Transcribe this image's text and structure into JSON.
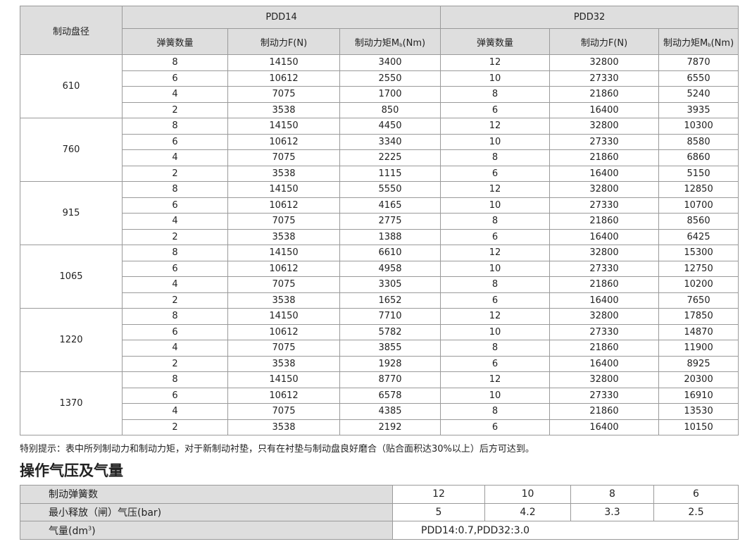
{
  "main_table": {
    "col_diameter": "制动盘径",
    "groups": [
      "PDD14",
      "PDD32"
    ],
    "sub_headers": [
      "弹簧数量",
      "制动力F(N)",
      "制动力矩M",
      "(Nm)"
    ],
    "torque_subscript": "b",
    "sections": [
      {
        "diameter": "610",
        "rows": [
          [
            "8",
            "14150",
            "3400",
            "12",
            "32800",
            "7870"
          ],
          [
            "6",
            "10612",
            "2550",
            "10",
            "27330",
            "6550"
          ],
          [
            "4",
            "7075",
            "1700",
            "8",
            "21860",
            "5240"
          ],
          [
            "2",
            "3538",
            "850",
            "6",
            "16400",
            "3935"
          ]
        ]
      },
      {
        "diameter": "760",
        "rows": [
          [
            "8",
            "14150",
            "4450",
            "12",
            "32800",
            "10300"
          ],
          [
            "6",
            "10612",
            "3340",
            "10",
            "27330",
            "8580"
          ],
          [
            "4",
            "7075",
            "2225",
            "8",
            "21860",
            "6860"
          ],
          [
            "2",
            "3538",
            "1115",
            "6",
            "16400",
            "5150"
          ]
        ]
      },
      {
        "diameter": "915",
        "rows": [
          [
            "8",
            "14150",
            "5550",
            "12",
            "32800",
            "12850"
          ],
          [
            "6",
            "10612",
            "4165",
            "10",
            "27330",
            "10700"
          ],
          [
            "4",
            "7075",
            "2775",
            "8",
            "21860",
            "8560"
          ],
          [
            "2",
            "3538",
            "1388",
            "6",
            "16400",
            "6425"
          ]
        ]
      },
      {
        "diameter": "1065",
        "rows": [
          [
            "8",
            "14150",
            "6610",
            "12",
            "32800",
            "15300"
          ],
          [
            "6",
            "10612",
            "4958",
            "10",
            "27330",
            "12750"
          ],
          [
            "4",
            "7075",
            "3305",
            "8",
            "21860",
            "10200"
          ],
          [
            "2",
            "3538",
            "1652",
            "6",
            "16400",
            "7650"
          ]
        ]
      },
      {
        "diameter": "1220",
        "rows": [
          [
            "8",
            "14150",
            "7710",
            "12",
            "32800",
            "17850"
          ],
          [
            "6",
            "10612",
            "5782",
            "10",
            "27330",
            "14870"
          ],
          [
            "4",
            "7075",
            "3855",
            "8",
            "21860",
            "11900"
          ],
          [
            "2",
            "3538",
            "1928",
            "6",
            "16400",
            "8925"
          ]
        ]
      },
      {
        "diameter": "1370",
        "rows": [
          [
            "8",
            "14150",
            "8770",
            "12",
            "32800",
            "20300"
          ],
          [
            "6",
            "10612",
            "6578",
            "10",
            "27330",
            "16910"
          ],
          [
            "4",
            "7075",
            "4385",
            "8",
            "21860",
            "13530"
          ],
          [
            "2",
            "3538",
            "2192",
            "6",
            "16400",
            "10150"
          ]
        ]
      }
    ]
  },
  "note": "特别提示：表中所列制动力和制动力矩，对于新制动衬垫，只有在衬垫与制动盘良好磨合（贴合面积达30%以上）后方可达到。",
  "section_title": "操作气压及气量",
  "ops_table": {
    "row1_label": "制动弹簧数",
    "row1_values": [
      "12",
      "10",
      "8",
      "6"
    ],
    "row2_label": "最小释放（闸）气压(bar)",
    "row2_values": [
      "5",
      "4.2",
      "3.3",
      "2.5"
    ],
    "row3_label": "气量(dm",
    "row3_sup": "3",
    "row3_label_end": ")",
    "row3_value": "PDD14:0.7,PDD32:3.0"
  }
}
